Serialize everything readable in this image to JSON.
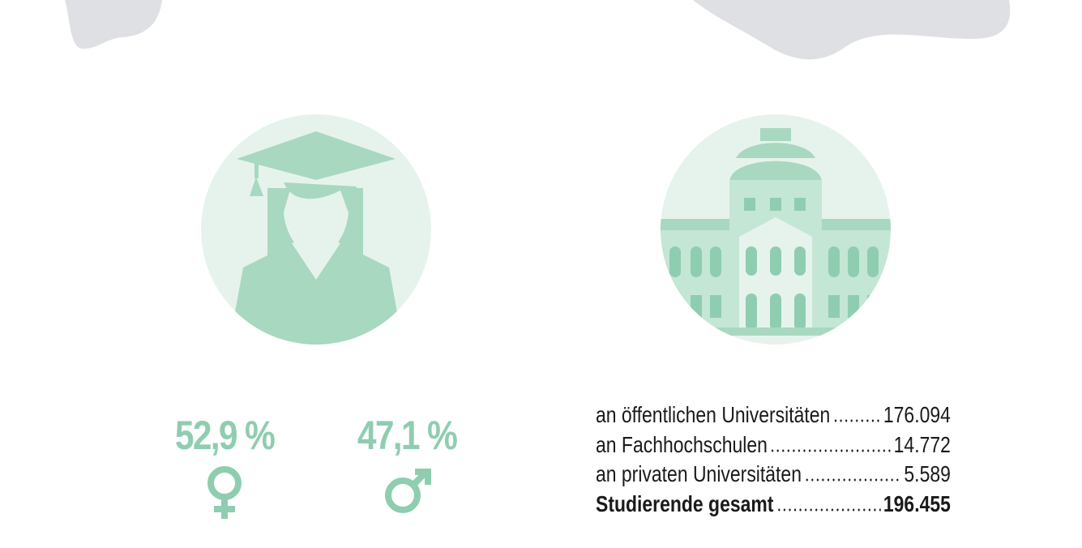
{
  "gender": {
    "female": {
      "percent": "52,9 %"
    },
    "male": {
      "percent": "47,1 %"
    }
  },
  "students": {
    "rows": [
      {
        "label": "an öffentlichen Universitäten",
        "value": "176.094"
      },
      {
        "label": "an Fachhochschulen",
        "value": "14.772"
      },
      {
        "label": "an privaten Universitäten",
        "value": "5.589"
      }
    ],
    "total": {
      "label": "Studierende gesamt",
      "value": "196.455"
    }
  }
}
